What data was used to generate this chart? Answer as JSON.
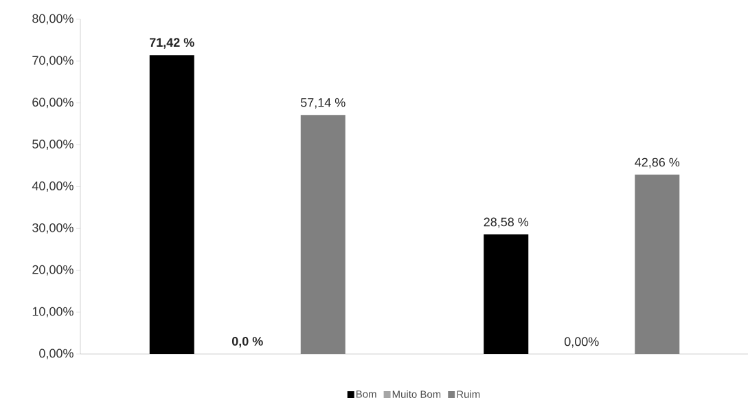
{
  "chart_data": {
    "type": "bar",
    "categories": [
      null,
      null
    ],
    "series": [
      {
        "name": "Bom",
        "color": "#000000",
        "values": [
          71.42,
          28.58
        ],
        "value_labels": [
          "**71,42 %**",
          "28,58 %"
        ]
      },
      {
        "name": "Muito Bom",
        "color": "#a6a6a6",
        "values": [
          0,
          0
        ],
        "value_labels": [
          "**0,0 %**",
          "0,00%"
        ]
      },
      {
        "name": "Ruim",
        "color": "#808080",
        "values": [
          57.14,
          42.86
        ],
        "value_labels": [
          "57,14 %",
          "42,86 %"
        ]
      }
    ],
    "ylim": [
      0,
      80
    ],
    "yticks": [
      {
        "value": 0,
        "label": "0,00%"
      },
      {
        "value": 10,
        "label": "10,00%"
      },
      {
        "value": 20,
        "label": "20,00%"
      },
      {
        "value": 30,
        "label": "30,00%"
      },
      {
        "value": 40,
        "label": "40,00%"
      },
      {
        "value": 50,
        "label": "50,00%"
      },
      {
        "value": 60,
        "label": "60,00%"
      },
      {
        "value": 70,
        "label": "70,00%"
      },
      {
        "value": 80,
        "label": "80,00%"
      }
    ],
    "grid": false,
    "legend": "bottom"
  }
}
